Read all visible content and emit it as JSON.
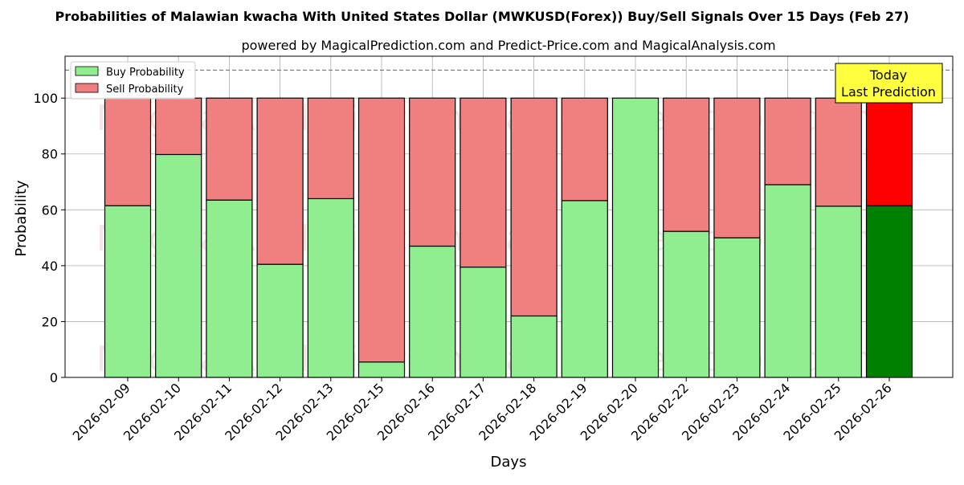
{
  "chart_data": {
    "type": "bar",
    "stacked": true,
    "title": "Probabilities of Malawian kwacha With United States Dollar (MWKUSD(Forex)) Buy/Sell Signals Over 15 Days (Feb 27)",
    "subtitle": "powered by MagicalPrediction.com and Predict-Price.com and MagicalAnalysis.com",
    "xlabel": "Days",
    "ylabel": "Probability",
    "ylim": [
      0,
      115
    ],
    "yticks": [
      0,
      20,
      40,
      60,
      80,
      100
    ],
    "reference_line": 110,
    "grid": true,
    "legend_position": "top-left",
    "categories": [
      "2026-02-09",
      "2026-02-10",
      "2026-02-11",
      "2026-02-12",
      "2026-02-13",
      "2026-02-15",
      "2026-02-16",
      "2026-02-17",
      "2026-02-18",
      "2026-02-19",
      "2026-02-20",
      "2026-02-22",
      "2026-02-23",
      "2026-02-24",
      "2026-02-25",
      "2026-02-26"
    ],
    "series": [
      {
        "name": "Buy Probability",
        "color": "#90ee90",
        "highlight_color": "#008000",
        "values": [
          61.5,
          79.8,
          63.5,
          40.5,
          64,
          5.5,
          47,
          39.5,
          22,
          63.3,
          100,
          52.3,
          50,
          69,
          61.3,
          61.5
        ]
      },
      {
        "name": "Sell Probability",
        "color": "#f08080",
        "highlight_color": "#ff0000",
        "values": [
          38.5,
          20.2,
          36.5,
          59.5,
          36,
          94.5,
          53,
          60.5,
          78,
          36.7,
          0,
          47.7,
          50,
          31,
          38.7,
          38.5
        ]
      }
    ],
    "highlight_index": 15,
    "annotation": {
      "line1": "Today",
      "line2": "Last Prediction",
      "bg": "#ffff40"
    },
    "watermark": "MagicalAnalysis.com     MagicalPrediction.com"
  }
}
